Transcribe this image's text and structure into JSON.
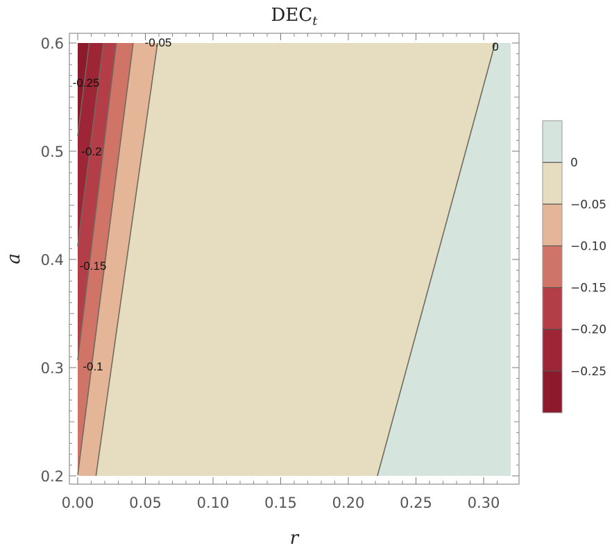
{
  "chart_data": {
    "type": "contour",
    "title": "DEC",
    "title_subscript": "t",
    "xlabel": "r",
    "ylabel": "a",
    "xlim": [
      0.0,
      0.32
    ],
    "ylim": [
      0.2,
      0.6
    ],
    "x_ticks": [
      "0.00",
      "0.05",
      "0.10",
      "0.15",
      "0.20",
      "0.25",
      "0.30"
    ],
    "y_ticks": [
      "0.2",
      "0.3",
      "0.4",
      "0.5",
      "0.6"
    ],
    "colors": {
      "above_0": "#d5e4dc",
      "from_-0.05_to_0": "#e6dcbf",
      "from_-0.10_to_-0.05": "#e4b596",
      "from_-0.15_to_-0.10": "#cf7466",
      "from_-0.20_to_-0.15": "#b43e47",
      "from_-0.25_to_-0.20": "#9e2535",
      "below_-0.25": "#8c1a2c"
    },
    "contours": [
      {
        "level": 0,
        "label": "0",
        "points": [
          [
            0.2215,
            0.2
          ],
          [
            0.3085,
            0.6
          ]
        ]
      },
      {
        "level": -0.05,
        "label": "-0.05",
        "points": [
          [
            0.0135,
            0.2
          ],
          [
            0.059,
            0.6
          ]
        ]
      },
      {
        "level": -0.1,
        "label": "-0.1",
        "points": [
          [
            0.0,
            0.201
          ],
          [
            0.041,
            0.6
          ]
        ]
      },
      {
        "level": -0.15,
        "label": "-0.15",
        "points": [
          [
            0.0,
            0.307
          ],
          [
            0.0285,
            0.6
          ]
        ]
      },
      {
        "level": -0.2,
        "label": "-0.2",
        "points": [
          [
            0.0,
            0.412
          ],
          [
            0.019,
            0.6
          ]
        ]
      },
      {
        "level": -0.25,
        "label": "-0.25",
        "points": [
          [
            0.0,
            0.514
          ],
          [
            0.0085,
            0.6
          ]
        ]
      }
    ],
    "legend": {
      "position": "right",
      "labels": [
        "0",
        "-0.05",
        "-0.10",
        "-0.15",
        "-0.20",
        "-0.25"
      ],
      "levels": [
        0,
        -0.05,
        -0.1,
        -0.15,
        -0.2,
        -0.25
      ],
      "range": [
        -0.3,
        0.05
      ]
    }
  }
}
